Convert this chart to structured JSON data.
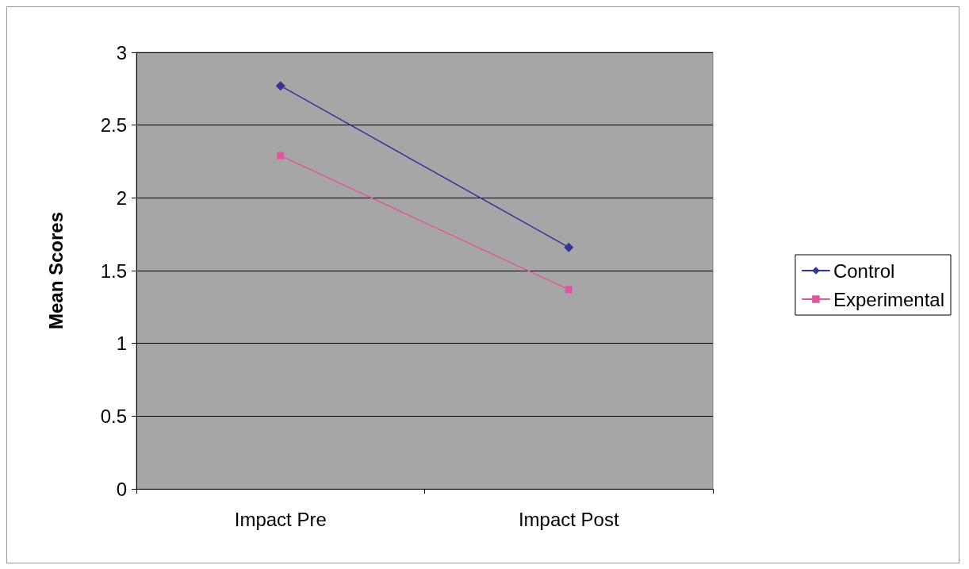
{
  "chart_data": {
    "type": "line",
    "ylabel": "Mean Scores",
    "categories": [
      "Impact Pre",
      "Impact Post"
    ],
    "series": [
      {
        "name": "Control",
        "color": "#333399",
        "marker": "diamond",
        "values": [
          2.77,
          1.66
        ]
      },
      {
        "name": "Experimental",
        "color": "#e0569a",
        "marker": "square",
        "values": [
          2.29,
          1.37
        ]
      }
    ],
    "ylim": [
      0,
      3
    ],
    "yticks": [
      0,
      0.5,
      1,
      1.5,
      2,
      2.5,
      3
    ],
    "grid": "y",
    "legend": "right",
    "line_style": "solid"
  }
}
